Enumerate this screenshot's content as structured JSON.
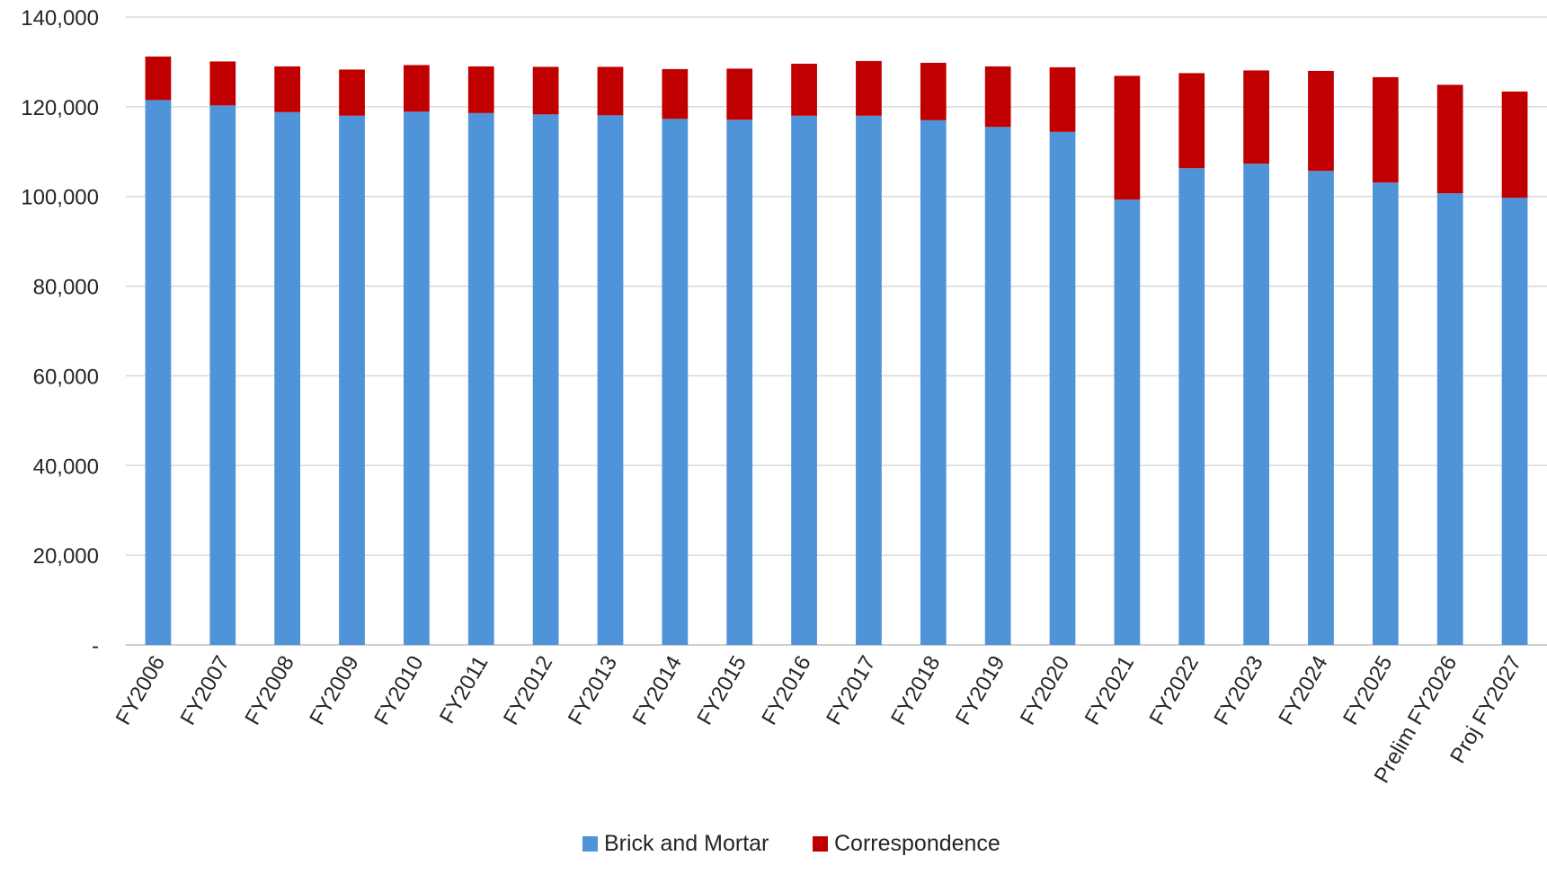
{
  "chart_data": {
    "type": "bar",
    "stacked": true,
    "categories": [
      "FY2006",
      "FY2007",
      "FY2008",
      "FY2009",
      "FY2010",
      "FY2011",
      "FY2012",
      "FY2013",
      "FY2014",
      "FY2015",
      "FY2016",
      "FY2017",
      "FY2018",
      "FY2019",
      "FY2020",
      "FY2021",
      "FY2022",
      "FY2023",
      "FY2024",
      "FY2025",
      "Prelim FY2026",
      "Proj FY2027"
    ],
    "series": [
      {
        "name": "Brick and Mortar",
        "color": "#4F94D8",
        "values": [
          121500,
          120300,
          118800,
          118000,
          118900,
          118600,
          118300,
          118100,
          117300,
          117100,
          118000,
          118000,
          117000,
          115500,
          114400,
          99300,
          106300,
          107300,
          105700,
          103100,
          100700,
          99700
        ]
      },
      {
        "name": "Correspondence",
        "color": "#C00000",
        "values": [
          9700,
          9800,
          10200,
          10300,
          10400,
          10400,
          10600,
          10800,
          11100,
          11400,
          11600,
          12200,
          12800,
          13500,
          14400,
          27600,
          21200,
          20800,
          22300,
          23500,
          24200,
          23700
        ]
      }
    ],
    "y_ticks": [
      "-",
      "20,000",
      "40,000",
      "60,000",
      "80,000",
      "100,000",
      "120,000",
      "140,000"
    ],
    "ylim": [
      0,
      140000
    ],
    "grid": true,
    "legend_position": "bottom-center",
    "title": "",
    "xlabel": "",
    "ylabel": ""
  }
}
